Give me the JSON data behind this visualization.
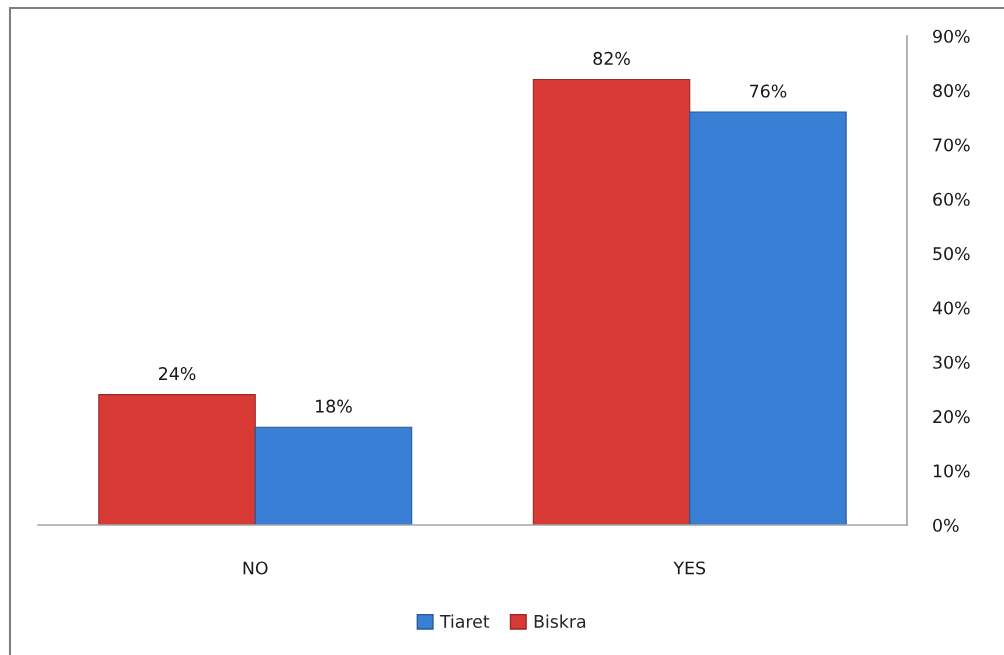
{
  "chart_data": {
    "type": "bar",
    "categories": [
      "NO",
      "YES"
    ],
    "series": [
      {
        "name": "Biskra",
        "color": "#d83a36",
        "values": [
          24,
          82
        ],
        "value_labels": [
          "24%",
          "82%"
        ]
      },
      {
        "name": "Tiaret",
        "color": "#3a7fd6",
        "values": [
          18,
          76
        ],
        "value_labels": [
          "18%",
          "76%"
        ]
      }
    ],
    "ylim": [
      0,
      90
    ],
    "yticks": [
      {
        "value": 0,
        "label": "0%"
      },
      {
        "value": 10,
        "label": "10%"
      },
      {
        "value": 20,
        "label": "20%"
      },
      {
        "value": 30,
        "label": "30%"
      },
      {
        "value": 40,
        "label": "40%"
      },
      {
        "value": 50,
        "label": "50%"
      },
      {
        "value": 60,
        "label": "60%"
      },
      {
        "value": 70,
        "label": "70%"
      },
      {
        "value": 80,
        "label": "80%"
      },
      {
        "value": 90,
        "label": "90%"
      }
    ],
    "legend": "bottom",
    "grid": false
  }
}
